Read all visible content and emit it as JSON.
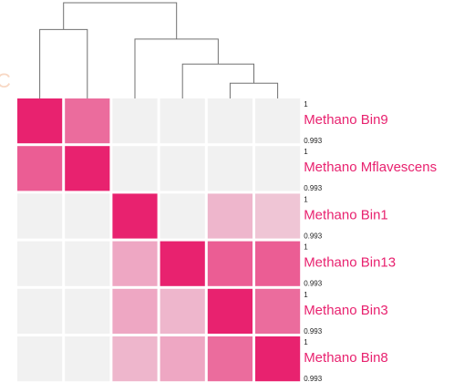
{
  "chart_data": {
    "type": "heatmap",
    "title": "",
    "xlabel": "",
    "ylabel": "",
    "rows": [
      "Methano Bin9",
      "Methano Mflavescens",
      "Methano Bin1",
      "Methano Bin13",
      "Methano Bin3",
      "Methano Bin8"
    ],
    "columns": [
      "Methano Bin9",
      "Methano Mflavescens",
      "Methano Bin1",
      "Methano Bin13",
      "Methano Bin3",
      "Methano Bin8"
    ],
    "values": [
      [
        1.0,
        0.9975,
        0.993,
        0.993,
        0.993,
        0.993
      ],
      [
        0.998,
        1.0,
        0.993,
        0.993,
        0.993,
        0.993
      ],
      [
        0.993,
        0.993,
        1.0,
        0.993,
        0.995,
        0.9945
      ],
      [
        0.993,
        0.993,
        0.9955,
        1.0,
        0.998,
        0.998
      ],
      [
        0.993,
        0.993,
        0.9955,
        0.995,
        1.0,
        0.9975
      ],
      [
        0.993,
        0.993,
        0.995,
        0.9955,
        0.9975,
        1.0
      ]
    ],
    "value_range": [
      0.993,
      1.0
    ],
    "scale_max_label": "1",
    "scale_min_label": "0.993",
    "partial_text": "C",
    "dendrogram": {
      "leaf_order": [
        "Methano Bin9",
        "Methano Mflavescens",
        "Methano Bin1",
        "Methano Bin13",
        "Methano Bin3",
        "Methano Bin8"
      ],
      "merges": [
        {
          "left": 4,
          "right": 5,
          "height": 0.16
        },
        {
          "left": 3,
          "right": -1,
          "height": 0.36
        },
        {
          "left": 2,
          "right": -2,
          "height": 0.62
        },
        {
          "left": 0,
          "right": 1,
          "height": 0.72
        },
        {
          "left": -4,
          "right": -3,
          "height": 1.0
        }
      ]
    }
  },
  "colors": {
    "high": "#e8226f",
    "low": "#f1f1f1",
    "label": "#e8226f",
    "dendrogram": "#707070",
    "ghost": "#f8d8c4"
  }
}
